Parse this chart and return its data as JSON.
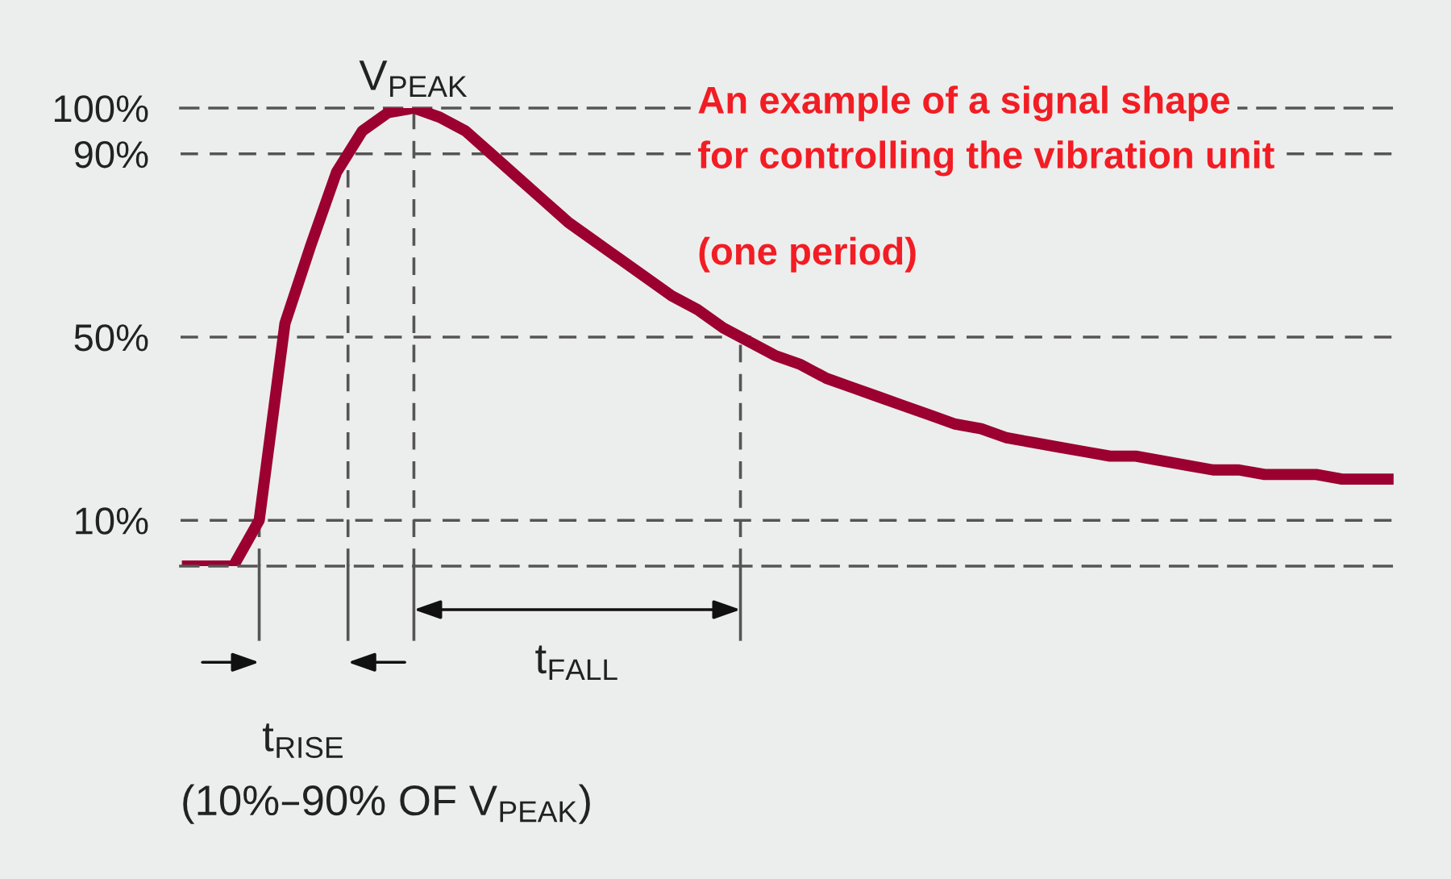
{
  "chart_data": {
    "type": "line",
    "categories": [
      null,
      null,
      null,
      null,
      null,
      null,
      null,
      null,
      null,
      null,
      null,
      null,
      null,
      null,
      null,
      null,
      null,
      null,
      null,
      null,
      null,
      null,
      null,
      null,
      null,
      null,
      null,
      null,
      null,
      null,
      null,
      null,
      null,
      null,
      null,
      null,
      null,
      null,
      null,
      null,
      null,
      null,
      null,
      null,
      null,
      null,
      null,
      null
    ],
    "series": [
      {
        "color": "#9b0030",
        "values": [
          0,
          0,
          0,
          10,
          53,
          70,
          86,
          95,
          99,
          100,
          98,
          95,
          90,
          85,
          80,
          75,
          71,
          67,
          63,
          59,
          56,
          52,
          49,
          46,
          44,
          41,
          39,
          37,
          35,
          33,
          31,
          30,
          28,
          27,
          26,
          25,
          24,
          24,
          23,
          22,
          21,
          21,
          20,
          20,
          20,
          19,
          19,
          19
        ]
      }
    ],
    "ylim": [
      0,
      100
    ],
    "yticks": [
      {
        "value": 10,
        "label": "10%"
      },
      {
        "value": 50,
        "label": "50%"
      },
      {
        "value": 90,
        "label": "90%"
      },
      {
        "value": 100,
        "label": "100%"
      }
    ],
    "tick_labels": "y",
    "grid": false,
    "marker": "none",
    "line_style": "solid",
    "ref_lines": [
      {
        "axis": "y",
        "value": 10,
        "color": "#555555",
        "line_style": "dashed"
      },
      {
        "axis": "y",
        "value": 50,
        "color": "#555555",
        "line_style": "dashed"
      },
      {
        "axis": "y",
        "value": 90,
        "color": "#555555",
        "line_style": "dashed"
      }
    ],
    "annotations": [
      "V$_{PEAK}$",
      "t$_{RISE}$",
      "(10%–90% OF V$_{PEAK}$)",
      "t$_{FALL}$",
      "An example of a signal shape",
      "for controlling the vibration unit",
      "(one period)"
    ]
  }
}
